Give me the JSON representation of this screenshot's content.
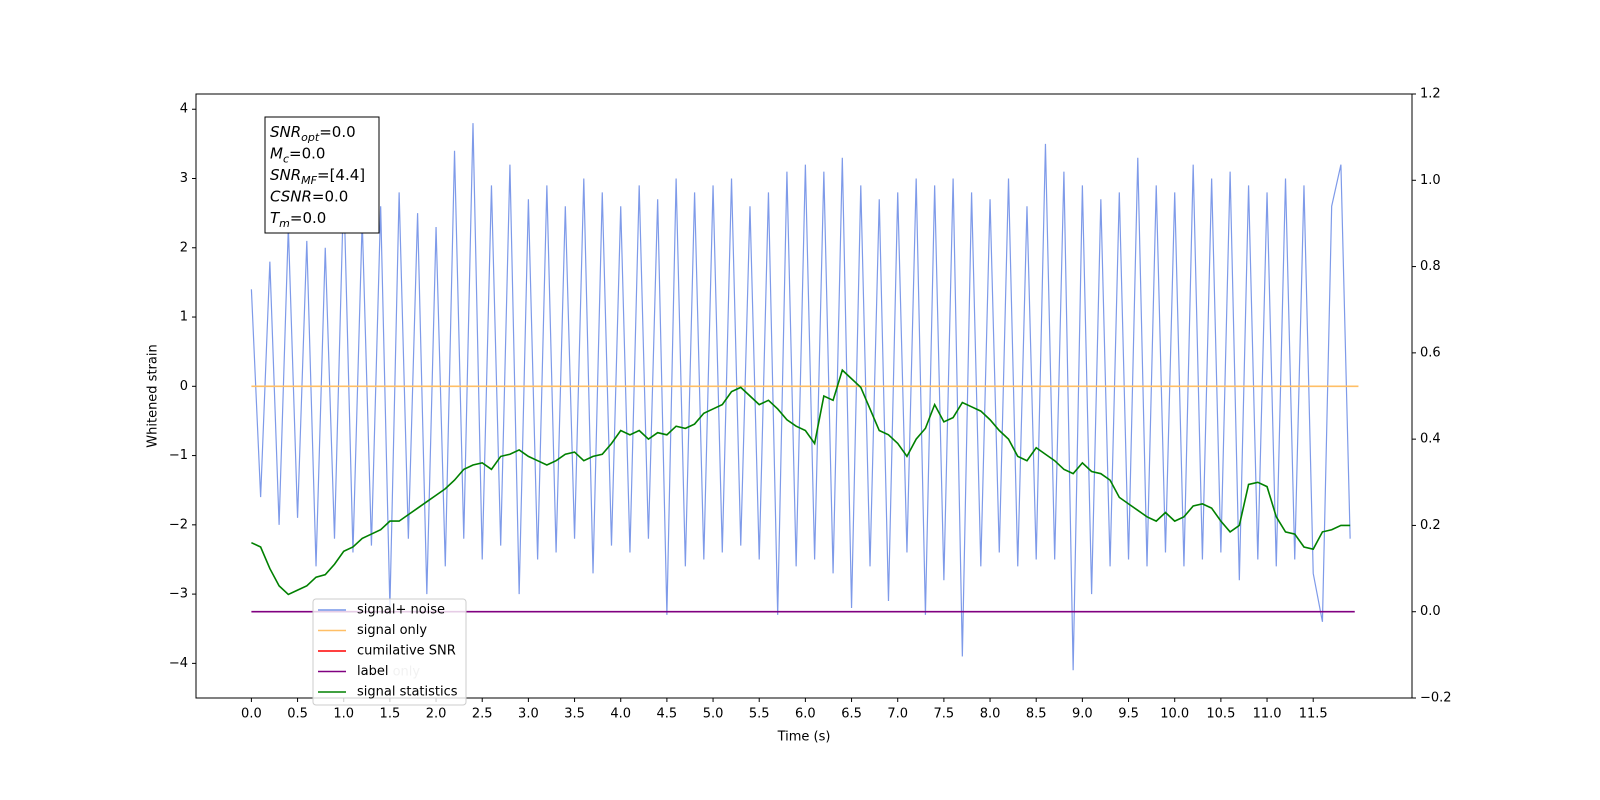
{
  "chart_data": {
    "type": "line",
    "xlabel": "Time (s)",
    "ylabel": "Whitened strain",
    "x": [
      0.0,
      0.1,
      0.2,
      0.3,
      0.4,
      0.5,
      0.6,
      0.7,
      0.8,
      0.9,
      1.0,
      1.1,
      1.2,
      1.3,
      1.4,
      1.5,
      1.6,
      1.7,
      1.8,
      1.9,
      2.0,
      2.1,
      2.2,
      2.3,
      2.4,
      2.5,
      2.6,
      2.7,
      2.8,
      2.9,
      3.0,
      3.1,
      3.2,
      3.3,
      3.4,
      3.5,
      3.6,
      3.7,
      3.8,
      3.9,
      4.0,
      4.1,
      4.2,
      4.3,
      4.4,
      4.5,
      4.6,
      4.7,
      4.8,
      4.9,
      5.0,
      5.1,
      5.2,
      5.3,
      5.4,
      5.5,
      5.6,
      5.7,
      5.8,
      5.9,
      6.0,
      6.1,
      6.2,
      6.3,
      6.4,
      6.5,
      6.6,
      6.7,
      6.8,
      6.9,
      7.0,
      7.1,
      7.2,
      7.3,
      7.4,
      7.5,
      7.6,
      7.7,
      7.8,
      7.9,
      8.0,
      8.1,
      8.2,
      8.3,
      8.4,
      8.5,
      8.6,
      8.7,
      8.8,
      8.9,
      9.0,
      9.1,
      9.2,
      9.3,
      9.4,
      9.5,
      9.6,
      9.7,
      9.8,
      9.9,
      10.0,
      10.1,
      10.2,
      10.3,
      10.4,
      10.5,
      10.6,
      10.7,
      10.8,
      10.9,
      11.0,
      11.1,
      11.2,
      11.3,
      11.4,
      11.5,
      11.6,
      11.7,
      11.8,
      11.9
    ],
    "series": [
      {
        "name": "signal+ noise",
        "color": "#7795e8",
        "values": [
          1.4,
          -1.6,
          1.8,
          -2.0,
          2.3,
          -1.9,
          2.1,
          -2.6,
          2.0,
          -2.2,
          2.9,
          -2.4,
          2.4,
          -2.3,
          2.6,
          -3.2,
          2.8,
          -2.2,
          2.5,
          -3.0,
          2.3,
          -2.6,
          3.4,
          -2.2,
          3.8,
          -2.5,
          2.9,
          -2.3,
          3.2,
          -3.0,
          2.7,
          -2.5,
          2.9,
          -2.4,
          2.6,
          -2.2,
          3.0,
          -2.7,
          2.8,
          -2.3,
          2.6,
          -2.4,
          2.9,
          -2.2,
          2.7,
          -3.3,
          3.0,
          -2.6,
          2.8,
          -2.5,
          2.9,
          -2.4,
          3.0,
          -2.3,
          2.6,
          -2.5,
          2.8,
          -3.3,
          3.1,
          -2.6,
          3.2,
          -2.5,
          3.1,
          -2.7,
          3.3,
          -3.2,
          2.9,
          -2.6,
          2.7,
          -3.1,
          2.8,
          -2.4,
          3.0,
          -3.3,
          2.9,
          -2.8,
          3.0,
          -3.9,
          2.8,
          -2.6,
          2.7,
          -2.4,
          3.0,
          -2.6,
          2.6,
          -2.5,
          3.5,
          -2.5,
          3.1,
          -4.1,
          2.9,
          -3.0,
          2.7,
          -2.6,
          2.8,
          -2.5,
          3.3,
          -2.6,
          2.9,
          -2.4,
          2.8,
          -2.6,
          3.2,
          -2.5,
          3.0,
          -2.4,
          3.1,
          -2.8,
          2.9,
          -2.5,
          2.8,
          -2.6,
          3.0,
          -2.5,
          2.9,
          -2.7,
          -3.4,
          2.6,
          3.2,
          -2.2
        ]
      },
      {
        "name": "signal only",
        "color": "#ffbf66",
        "x": [
          0.0,
          11.99
        ],
        "values": [
          0,
          0
        ]
      },
      {
        "name": "cumilative SNR",
        "color": "#ff0000"
      },
      {
        "name": "label",
        "color": "#800080",
        "axis": "y2",
        "x": [
          0.0,
          11.95
        ],
        "values": [
          0,
          0
        ]
      },
      {
        "name": "signal statistics",
        "color": "#008000",
        "axis": "y2",
        "values": [
          0.16,
          0.15,
          0.1,
          0.06,
          0.04,
          0.05,
          0.06,
          0.08,
          0.086,
          0.11,
          0.14,
          0.15,
          0.17,
          0.18,
          0.19,
          0.21,
          0.21,
          0.225,
          0.24,
          0.255,
          0.27,
          0.285,
          0.305,
          0.33,
          0.34,
          0.345,
          0.33,
          0.36,
          0.365,
          0.375,
          0.36,
          0.35,
          0.34,
          0.35,
          0.365,
          0.37,
          0.35,
          0.36,
          0.365,
          0.39,
          0.42,
          0.41,
          0.42,
          0.4,
          0.415,
          0.41,
          0.43,
          0.425,
          0.435,
          0.46,
          0.47,
          0.48,
          0.51,
          0.52,
          0.5,
          0.48,
          0.49,
          0.47,
          0.445,
          0.43,
          0.42,
          0.39,
          0.5,
          0.49,
          0.56,
          0.54,
          0.52,
          0.47,
          0.42,
          0.41,
          0.39,
          0.36,
          0.4,
          0.425,
          0.48,
          0.44,
          0.45,
          0.485,
          0.475,
          0.465,
          0.445,
          0.42,
          0.4,
          0.36,
          0.35,
          0.38,
          0.365,
          0.35,
          0.33,
          0.32,
          0.345,
          0.325,
          0.32,
          0.305,
          0.265,
          0.25,
          0.235,
          0.22,
          0.21,
          0.23,
          0.21,
          0.22,
          0.245,
          0.25,
          0.24,
          0.21,
          0.185,
          0.2,
          0.295,
          0.3,
          0.29,
          0.22,
          0.185,
          0.18,
          0.15,
          0.145,
          0.185,
          0.19,
          0.2,
          0.2
        ]
      }
    ],
    "xlim": [
      -0.6,
      12.57
    ],
    "ylim": [
      -4.5,
      4.22
    ],
    "y2lim": [
      -0.2,
      1.2
    ],
    "xticks": [
      {
        "value": 0,
        "label": "0.0"
      },
      0.5,
      {
        "value": 1,
        "label": "1.0"
      },
      1.5,
      {
        "value": 2,
        "label": "2.0"
      },
      2.5,
      {
        "value": 3,
        "label": "3.0"
      },
      3.5,
      {
        "value": 4,
        "label": "4.0"
      },
      4.5,
      {
        "value": 5,
        "label": "5.0"
      },
      5.5,
      {
        "value": 6,
        "label": "6.0"
      },
      6.5,
      {
        "value": 7,
        "label": "7.0"
      },
      7.5,
      {
        "value": 8,
        "label": "8.0"
      },
      8.5,
      {
        "value": 9,
        "label": "9.0"
      },
      9.5,
      {
        "value": 10,
        "label": "10.0"
      },
      10.5,
      {
        "value": 11,
        "label": "11.0"
      },
      11.5
    ],
    "yticks": [
      {
        "value": -4,
        "label": "−4"
      },
      {
        "value": -3,
        "label": "−3"
      },
      {
        "value": -2,
        "label": "−2"
      },
      {
        "value": -1,
        "label": "−1"
      },
      0,
      1,
      2,
      3,
      4
    ],
    "y2ticks": [
      {
        "value": -0.2,
        "label": "−0.2"
      },
      {
        "value": 0,
        "label": "0.0"
      },
      0.2,
      0.4,
      0.6,
      0.8,
      {
        "value": 1,
        "label": "1.0"
      },
      1.2
    ],
    "faded_legend_text": "label only",
    "info_box": [
      {
        "main": "SNR",
        "sub": "opt",
        "rest": "=0.0"
      },
      {
        "main": "M",
        "sub": "c",
        "rest": "=0.0"
      },
      {
        "main": "SNR",
        "sub": "MF",
        "rest": "=[4.4]"
      },
      {
        "main": "CSNR",
        "rest": "=0.0"
      },
      {
        "main": "T",
        "sub": "m",
        "rest": "=0.0"
      }
    ]
  }
}
